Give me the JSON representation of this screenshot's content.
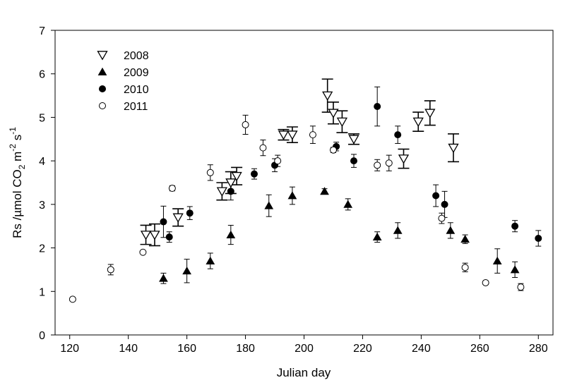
{
  "chart_data": {
    "type": "scatter",
    "xlabel": "Julian day",
    "ylabel": {
      "parts": [
        "Rs /µmol CO",
        "2",
        " m",
        "-2",
        " s",
        "-1"
      ]
    },
    "xlim": [
      115,
      285
    ],
    "ylim": [
      0,
      7
    ],
    "x_ticks": [
      "120",
      "140",
      "160",
      "180",
      "200",
      "220",
      "240",
      "260",
      "280"
    ],
    "y_ticks": [
      "0",
      "1",
      "2",
      "3",
      "4",
      "5",
      "6",
      "7"
    ],
    "grid": false,
    "legend_position": "top-left",
    "series": [
      {
        "name": "2008",
        "marker": "triangle-down-open",
        "points": [
          {
            "x": 146,
            "y": 2.3,
            "err": 0.22
          },
          {
            "x": 149,
            "y": 2.3,
            "err": 0.25
          },
          {
            "x": 157,
            "y": 2.7,
            "err": 0.2
          },
          {
            "x": 172,
            "y": 3.3,
            "err": 0.2
          },
          {
            "x": 175,
            "y": 3.5,
            "err": 0.25
          },
          {
            "x": 177,
            "y": 3.65,
            "err": 0.2
          },
          {
            "x": 193,
            "y": 4.6,
            "err": 0.12
          },
          {
            "x": 196,
            "y": 4.6,
            "err": 0.18
          },
          {
            "x": 208,
            "y": 5.5,
            "err": 0.38
          },
          {
            "x": 210,
            "y": 5.1,
            "err": 0.25
          },
          {
            "x": 213,
            "y": 4.9,
            "err": 0.25
          },
          {
            "x": 217,
            "y": 4.5,
            "err": 0.12
          },
          {
            "x": 234,
            "y": 4.05,
            "err": 0.22
          },
          {
            "x": 239,
            "y": 4.9,
            "err": 0.22
          },
          {
            "x": 243,
            "y": 5.1,
            "err": 0.28
          },
          {
            "x": 251,
            "y": 4.3,
            "err": 0.32
          }
        ]
      },
      {
        "name": "2009",
        "marker": "triangle-up-filled",
        "points": [
          {
            "x": 152,
            "y": 1.3,
            "err": 0.12
          },
          {
            "x": 160,
            "y": 1.47,
            "err": 0.27
          },
          {
            "x": 168,
            "y": 1.7,
            "err": 0.18
          },
          {
            "x": 175,
            "y": 2.3,
            "err": 0.22
          },
          {
            "x": 188,
            "y": 2.97,
            "err": 0.25
          },
          {
            "x": 196,
            "y": 3.2,
            "err": 0.2
          },
          {
            "x": 207,
            "y": 3.3,
            "err": 0.06
          },
          {
            "x": 215,
            "y": 3.0,
            "err": 0.13
          },
          {
            "x": 225,
            "y": 2.25,
            "err": 0.12
          },
          {
            "x": 232,
            "y": 2.4,
            "err": 0.18
          },
          {
            "x": 250,
            "y": 2.4,
            "err": 0.18
          },
          {
            "x": 255,
            "y": 2.2,
            "err": 0.1
          },
          {
            "x": 266,
            "y": 1.7,
            "err": 0.28
          },
          {
            "x": 272,
            "y": 1.5,
            "err": 0.18
          }
        ]
      },
      {
        "name": "2010",
        "marker": "circle-filled",
        "points": [
          {
            "x": 152,
            "y": 2.6,
            "err": 0.36
          },
          {
            "x": 154,
            "y": 2.25,
            "err": 0.12
          },
          {
            "x": 161,
            "y": 2.8,
            "err": 0.15
          },
          {
            "x": 175,
            "y": 3.3,
            "err": 0.2
          },
          {
            "x": 183,
            "y": 3.7,
            "err": 0.12
          },
          {
            "x": 190,
            "y": 3.9,
            "err": 0.15
          },
          {
            "x": 211,
            "y": 4.33,
            "err": 0.1
          },
          {
            "x": 217,
            "y": 4.0,
            "err": 0.15
          },
          {
            "x": 225,
            "y": 5.25,
            "err": 0.45
          },
          {
            "x": 232,
            "y": 4.6,
            "err": 0.2
          },
          {
            "x": 245,
            "y": 3.2,
            "err": 0.25
          },
          {
            "x": 248,
            "y": 3.0,
            "err": 0.3
          },
          {
            "x": 272,
            "y": 2.5,
            "err": 0.13
          },
          {
            "x": 280,
            "y": 2.22,
            "err": 0.18
          }
        ]
      },
      {
        "name": "2011",
        "marker": "circle-open",
        "points": [
          {
            "x": 121,
            "y": 0.82,
            "err": 0.0
          },
          {
            "x": 134,
            "y": 1.5,
            "err": 0.12
          },
          {
            "x": 145,
            "y": 1.9,
            "err": 0.0
          },
          {
            "x": 155,
            "y": 3.37,
            "err": 0.06
          },
          {
            "x": 168,
            "y": 3.73,
            "err": 0.18
          },
          {
            "x": 180,
            "y": 4.83,
            "err": 0.22
          },
          {
            "x": 186,
            "y": 4.3,
            "err": 0.18
          },
          {
            "x": 191,
            "y": 4.0,
            "err": 0.13
          },
          {
            "x": 203,
            "y": 4.6,
            "err": 0.2
          },
          {
            "x": 210,
            "y": 4.25,
            "err": 0.06
          },
          {
            "x": 225,
            "y": 3.9,
            "err": 0.13
          },
          {
            "x": 229,
            "y": 3.95,
            "err": 0.18
          },
          {
            "x": 247,
            "y": 2.68,
            "err": 0.12
          },
          {
            "x": 255,
            "y": 1.55,
            "err": 0.1
          },
          {
            "x": 262,
            "y": 1.2,
            "err": 0.0
          },
          {
            "x": 274,
            "y": 1.1,
            "err": 0.08
          }
        ]
      }
    ]
  }
}
